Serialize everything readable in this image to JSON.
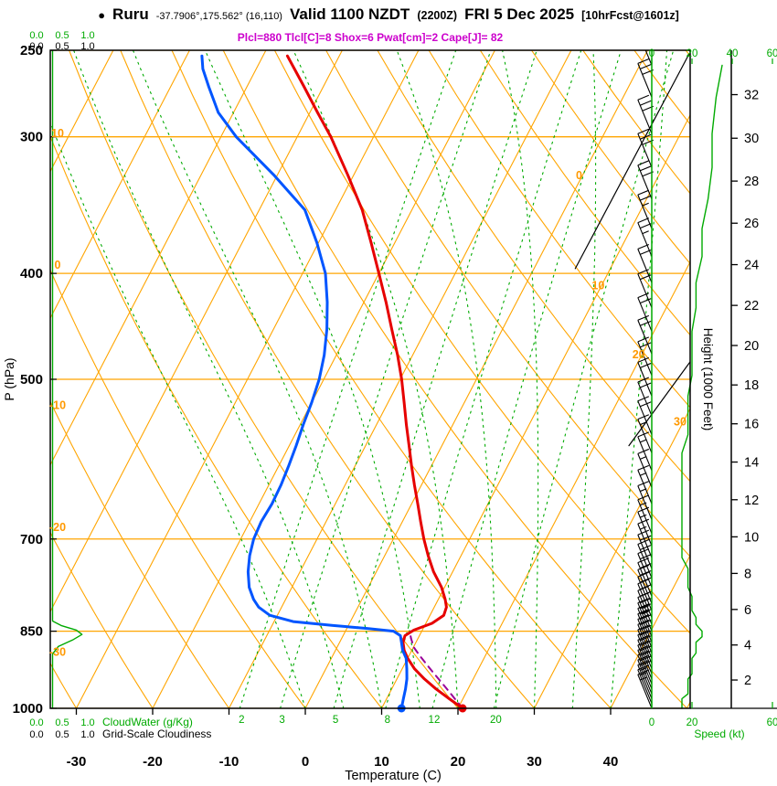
{
  "title": {
    "bullet": "●",
    "station": "Ruru",
    "coords": "-37.7906°,175.562° (16,110)",
    "valid": "Valid 1100 NZDT",
    "zulu": "(2200Z)",
    "date": "FRI 5 Dec 2025",
    "fcst": "[10hrFcst@1601z]"
  },
  "indices_line": "Plcl=880 Tlcl[C]=8 Shox=6 Pwat[cm]=2 Cape[J]= 82",
  "axes": {
    "pressure_label": "P (hPa)",
    "pressure_ticks": [
      250,
      300,
      400,
      500,
      700,
      850,
      1000
    ],
    "temperature_label": "Temperature (C)",
    "temperature_ticks": [
      -30,
      -20,
      -10,
      0,
      10,
      20,
      30,
      40
    ],
    "height_label": "Height (1000 Feet)",
    "height_ticks_kft": [
      2,
      4,
      6,
      8,
      10,
      12,
      14,
      16,
      18,
      20,
      22,
      24,
      26,
      28,
      30,
      32
    ],
    "speed_label": "Speed (kt)",
    "speed_ticks_top": [
      0,
      20,
      40,
      60
    ],
    "speed_ticks_bottom": [
      0,
      20,
      60
    ],
    "cloudwater_label": "CloudWater (g/Kg)",
    "cloudiness_label": "Grid-Scale Cloudiness",
    "fraction_scale": [
      "0.0",
      "0.5",
      "1.0"
    ]
  },
  "chart_data": {
    "type": "line",
    "variant": "skew-t log-p sounding",
    "pressure_range_hpa": [
      1000,
      250
    ],
    "temperature_range_c": [
      -30,
      40
    ],
    "series": [
      {
        "name": "temperature_c",
        "color": "#e60000",
        "points": [
          [
            1000,
            20.6
          ],
          [
            980,
            18.2
          ],
          [
            960,
            15.8
          ],
          [
            940,
            13.6
          ],
          [
            920,
            11.6
          ],
          [
            900,
            10.0
          ],
          [
            885,
            9.0
          ],
          [
            870,
            8.3
          ],
          [
            858,
            8.1
          ],
          [
            848,
            8.9
          ],
          [
            836,
            10.8
          ],
          [
            822,
            11.8
          ],
          [
            808,
            11.6
          ],
          [
            795,
            10.9
          ],
          [
            775,
            9.6
          ],
          [
            750,
            7.5
          ],
          [
            725,
            5.7
          ],
          [
            700,
            4.0
          ],
          [
            675,
            2.4
          ],
          [
            650,
            0.8
          ],
          [
            625,
            -0.9
          ],
          [
            600,
            -2.6
          ],
          [
            575,
            -4.3
          ],
          [
            550,
            -6.1
          ],
          [
            525,
            -7.9
          ],
          [
            500,
            -9.8
          ],
          [
            475,
            -12.0
          ],
          [
            450,
            -14.5
          ],
          [
            425,
            -17.1
          ],
          [
            400,
            -20.0
          ],
          [
            375,
            -23.1
          ],
          [
            350,
            -26.5
          ],
          [
            325,
            -30.8
          ],
          [
            300,
            -35.6
          ],
          [
            285,
            -39.0
          ],
          [
            270,
            -42.5
          ],
          [
            260,
            -45.0
          ],
          [
            253,
            -46.8
          ]
        ]
      },
      {
        "name": "dewpoint_c",
        "color": "#0055ff",
        "points": [
          [
            1000,
            12.6
          ],
          [
            980,
            12.2
          ],
          [
            960,
            11.8
          ],
          [
            940,
            11.3
          ],
          [
            920,
            10.6
          ],
          [
            900,
            9.8
          ],
          [
            885,
            8.8
          ],
          [
            870,
            8.1
          ],
          [
            858,
            7.5
          ],
          [
            850,
            6.3
          ],
          [
            845,
            2.5
          ],
          [
            840,
            -2.0
          ],
          [
            833,
            -7.5
          ],
          [
            822,
            -11.0
          ],
          [
            808,
            -13.0
          ],
          [
            795,
            -14.2
          ],
          [
            775,
            -15.6
          ],
          [
            750,
            -16.8
          ],
          [
            725,
            -17.7
          ],
          [
            700,
            -18.3
          ],
          [
            675,
            -18.5
          ],
          [
            650,
            -18.3
          ],
          [
            625,
            -18.4
          ],
          [
            600,
            -18.7
          ],
          [
            575,
            -19.1
          ],
          [
            550,
            -19.6
          ],
          [
            525,
            -20.0
          ],
          [
            500,
            -20.6
          ],
          [
            475,
            -21.6
          ],
          [
            450,
            -23.0
          ],
          [
            425,
            -24.8
          ],
          [
            400,
            -27.0
          ],
          [
            375,
            -30.2
          ],
          [
            350,
            -34.0
          ],
          [
            325,
            -40.5
          ],
          [
            300,
            -48.0
          ],
          [
            285,
            -52.0
          ],
          [
            270,
            -55.0
          ],
          [
            260,
            -57.0
          ],
          [
            253,
            -58.0
          ]
        ]
      },
      {
        "name": "parcel_c",
        "color": "#990099",
        "style": "dashed",
        "points": [
          [
            1000,
            20.6
          ],
          [
            962,
            17.4
          ],
          [
            925,
            14.1
          ],
          [
            895,
            11.4
          ],
          [
            880,
            10.1
          ],
          [
            865,
            9.2
          ],
          [
            852,
            8.5
          ]
        ]
      },
      {
        "name": "wind_kt",
        "color": "#00aa00",
        "points": [
          [
            1000,
            15
          ],
          [
            990,
            15
          ],
          [
            980,
            15
          ],
          [
            970,
            18
          ],
          [
            960,
            18
          ],
          [
            950,
            18
          ],
          [
            940,
            18
          ],
          [
            930,
            20
          ],
          [
            920,
            20
          ],
          [
            910,
            20
          ],
          [
            900,
            20
          ],
          [
            890,
            22
          ],
          [
            880,
            22
          ],
          [
            870,
            22
          ],
          [
            860,
            25
          ],
          [
            850,
            25
          ],
          [
            838,
            22
          ],
          [
            826,
            22
          ],
          [
            814,
            20
          ],
          [
            802,
            20
          ],
          [
            790,
            20
          ],
          [
            775,
            18
          ],
          [
            760,
            18
          ],
          [
            745,
            18
          ],
          [
            728,
            15
          ],
          [
            710,
            15
          ],
          [
            692,
            15
          ],
          [
            672,
            15
          ],
          [
            650,
            15
          ],
          [
            628,
            15
          ],
          [
            606,
            15
          ],
          [
            584,
            15
          ],
          [
            562,
            18
          ],
          [
            540,
            18
          ],
          [
            518,
            18
          ],
          [
            496,
            20
          ],
          [
            474,
            20
          ],
          [
            452,
            20
          ],
          [
            430,
            22
          ],
          [
            408,
            22
          ],
          [
            386,
            25
          ],
          [
            364,
            25
          ],
          [
            342,
            28
          ],
          [
            320,
            30
          ],
          [
            298,
            30
          ],
          [
            276,
            32
          ],
          [
            258,
            35
          ]
        ]
      },
      {
        "name": "cloudwater_gkg",
        "color": "#00aa00",
        "points": [
          [
            1000,
            0
          ],
          [
            892,
            0
          ],
          [
            878,
            0.12
          ],
          [
            866,
            0.42
          ],
          [
            856,
            0.62
          ],
          [
            848,
            0.5
          ],
          [
            840,
            0.18
          ],
          [
            832,
            0
          ],
          [
            700,
            0
          ],
          [
            500,
            0
          ],
          [
            250,
            0
          ]
        ]
      }
    ],
    "surface_markers": [
      {
        "name": "surface-temperature-dot",
        "p": 1000,
        "t": 20.6,
        "color": "#e60000"
      },
      {
        "name": "surface-dewpoint-dot",
        "p": 1000,
        "t": 12.6,
        "color": "#0055ff"
      }
    ],
    "grid": {
      "isobars": [
        250,
        300,
        400,
        500,
        700,
        850,
        1000
      ],
      "isotherms": {
        "min": -120,
        "max": 50,
        "step": 10
      },
      "dry_adiabats": {
        "min": -30,
        "max": 140,
        "step": 10
      },
      "mixing_ratios_gkg": [
        2,
        3,
        5,
        8,
        12,
        20
      ],
      "moist_adiabats_surface_c": [
        0,
        5,
        10,
        15,
        20,
        25,
        30,
        35,
        40
      ],
      "isotherm_labels": [
        {
          "t": 0,
          "p": 330
        },
        {
          "t": 10,
          "p": 416
        },
        {
          "t": 20,
          "p": 481
        },
        {
          "t": 30,
          "p": 554
        }
      ],
      "dry_adiabat_labels": [
        {
          "th": 10,
          "p": 298
        },
        {
          "th": 0,
          "p": 393
        },
        {
          "th": -10,
          "p": 528
        },
        {
          "th": -20,
          "p": 683
        },
        {
          "th": -30,
          "p": 888
        }
      ]
    },
    "boundary_lines": [
      [
        [
          252,
          5.7
        ],
        [
          396,
          5.4
        ]
      ],
      [
        [
          482,
          26.8
        ],
        [
          575,
          24.5
        ]
      ]
    ]
  },
  "colors": {
    "grid_orange": "#ffa500",
    "label_orange": "#ff9900",
    "green": "#00aa00",
    "temperature": "#e60000",
    "dewpoint": "#0055ff",
    "parcel": "#990099",
    "indices": "#cc00cc"
  }
}
